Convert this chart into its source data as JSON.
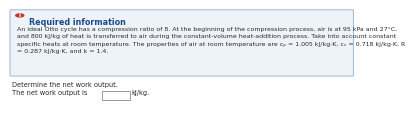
{
  "info_icon_color": "#c0392b",
  "info_box_bg": "#eef3fa",
  "info_box_border": "#a8bfd8",
  "title_text": "Required information",
  "title_color": "#1a4a8a",
  "line1": "An ideal Otto cycle has a compression ratio of 8. At the beginning of the compression process, air is at 95 kPa and 27°C,",
  "line2": "and 800 kJ/kg of heat is transferred to air during the constant-volume heat-addition process. Take into account constant",
  "line3": "specific heats at room temperature. The properties of air at room temperature are cₚ = 1.005 kJ/kg·K, cᵥ = 0.718 kJ/kg·K, R",
  "line4": "= 0.287 kJ/kg·K, and k = 1.4.",
  "body_color": "#2a2a2a",
  "question_text": "Determine the net work output.",
  "answer_label": "The net work output is",
  "answer_unit": "kJ/kg.",
  "box_fill": "#ffffff",
  "box_border": "#999999",
  "background_color": "#ffffff",
  "font_size_title": 5.8,
  "font_size_body": 4.5,
  "font_size_question": 4.8
}
